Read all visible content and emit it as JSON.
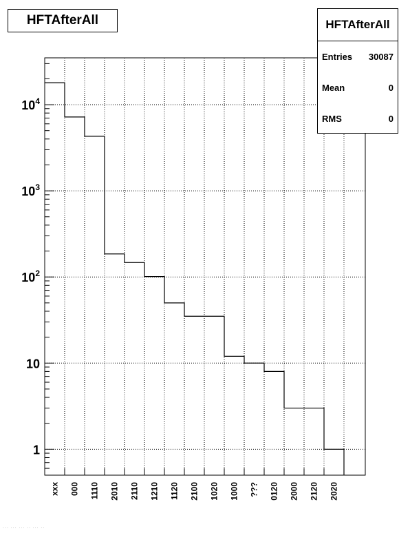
{
  "chart_data": {
    "type": "bar",
    "title": "HFTAfterAll",
    "categories": [
      "xxx",
      "000",
      "1110",
      "2010",
      "2110",
      "1210",
      "1120",
      "2100",
      "1020",
      "1000",
      "???",
      "0120",
      "2000",
      "2120",
      "2020"
    ],
    "values": [
      18000,
      7200,
      4300,
      185,
      147,
      101,
      50,
      35,
      35,
      12,
      10,
      8,
      3,
      3,
      1
    ],
    "y_scale": "log",
    "ylim": [
      0.5,
      35000
    ],
    "y_ticks": [
      1,
      10,
      100,
      1000,
      10000
    ],
    "y_tick_labels": [
      "1",
      "10",
      "10^2",
      "10^3",
      "10^4"
    ],
    "grid": true,
    "xlabel": "",
    "ylabel": ""
  },
  "stats": {
    "title": "HFTAfterAll",
    "entries_label": "Entries",
    "entries_value": "30087",
    "mean_label": "Mean",
    "mean_value": "0",
    "rms_label": "RMS",
    "rms_value": "0"
  },
  "footer": {
    "text": "··· ··· ··· ·· ··· ··"
  }
}
